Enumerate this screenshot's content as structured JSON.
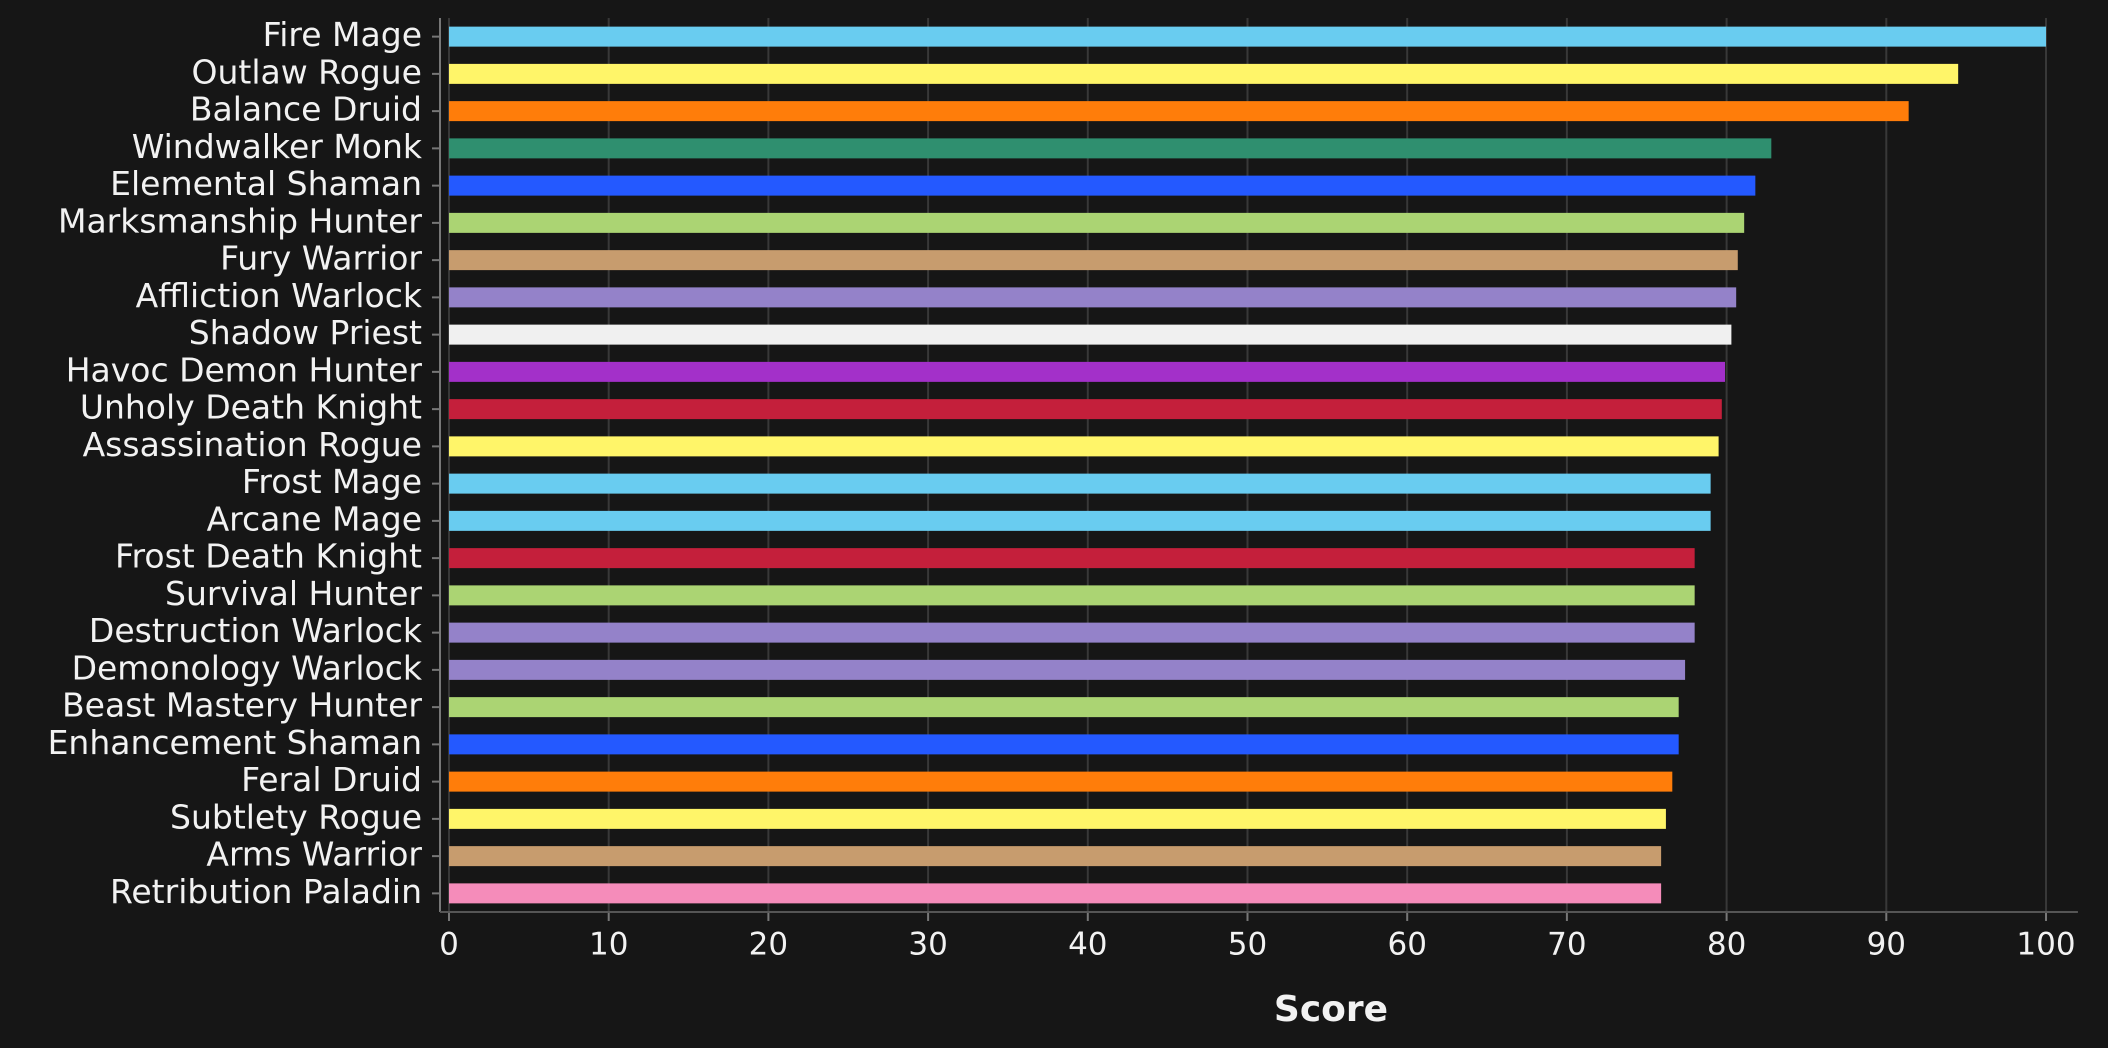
{
  "chart_data": {
    "type": "hbar",
    "x_label": "Score",
    "categories": [
      "Fire Mage",
      "Outlaw Rogue",
      "Balance Druid",
      "Windwalker Monk",
      "Elemental Shaman",
      "Marksmanship Hunter",
      "Fury Warrior",
      "Affliction Warlock",
      "Shadow Priest",
      "Havoc Demon Hunter",
      "Unholy Death Knight",
      "Assassination Rogue",
      "Frost Mage",
      "Arcane Mage",
      "Frost Death Knight",
      "Survival Hunter",
      "Destruction Warlock",
      "Demonology Warlock",
      "Beast Mastery Hunter",
      "Enhancement Shaman",
      "Feral Druid",
      "Subtlety Rogue",
      "Arms Warrior",
      "Retribution Paladin"
    ],
    "values": [
      100,
      94.5,
      91.4,
      82.8,
      81.8,
      81.1,
      80.7,
      80.6,
      80.3,
      79.9,
      79.7,
      79.5,
      79.0,
      79.0,
      78.0,
      78.0,
      78.0,
      77.4,
      77.0,
      77.0,
      76.6,
      76.2,
      75.9,
      75.9
    ],
    "colors": [
      "#69ccf0",
      "#fff569",
      "#ff7d0a",
      "#2f8f6f",
      "#2459ff",
      "#abd473",
      "#c79c6e",
      "#9482c9",
      "#f0f0f0",
      "#a330c9",
      "#c41f3b",
      "#fff569",
      "#69ccf0",
      "#69ccf0",
      "#c41f3b",
      "#abd473",
      "#9482c9",
      "#9482c9",
      "#abd473",
      "#2459ff",
      "#ff7d0a",
      "#fff569",
      "#c79c6e",
      "#f58cba"
    ],
    "xlim": [
      0,
      102
    ],
    "xticks": [
      0,
      10,
      20,
      30,
      40,
      50,
      60,
      70,
      80,
      90,
      100
    ],
    "grid": true
  }
}
